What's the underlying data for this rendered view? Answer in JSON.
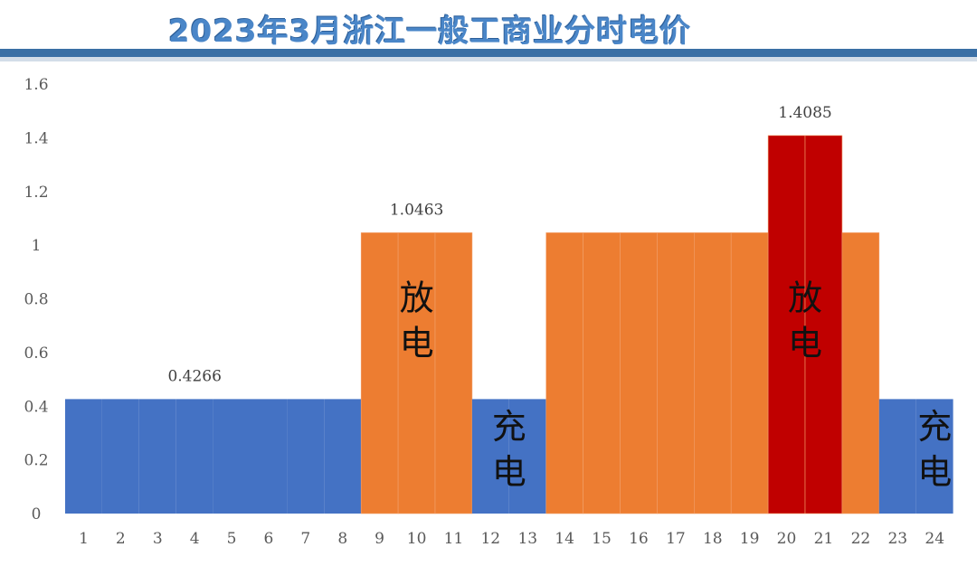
{
  "title": "2023年3月浙江一般工商业分时电价",
  "colors": {
    "valley": "#4472c4",
    "peak": "#ed7d31",
    "sharp": "#c00000",
    "title": "#4a86c8",
    "header_bar": "#3a6fa5"
  },
  "chart_data": {
    "type": "bar",
    "title": "2023年3月浙江一般工商业分时电价",
    "xlabel": "",
    "ylabel": "",
    "ylim": [
      0,
      1.6
    ],
    "yticks": [
      "0",
      "0.2",
      "0.4",
      "0.6",
      "0.8",
      "1",
      "1.2",
      "1.4",
      "1.6"
    ],
    "grid": false,
    "categories": [
      "1",
      "2",
      "3",
      "4",
      "5",
      "6",
      "7",
      "8",
      "9",
      "10",
      "11",
      "12",
      "13",
      "14",
      "15",
      "16",
      "17",
      "18",
      "19",
      "20",
      "21",
      "22",
      "23",
      "24"
    ],
    "values": [
      0.4266,
      0.4266,
      0.4266,
      0.4266,
      0.4266,
      0.4266,
      0.4266,
      0.4266,
      1.0463,
      1.0463,
      1.0463,
      0.4266,
      0.4266,
      1.0463,
      1.0463,
      1.0463,
      1.0463,
      1.0463,
      1.0463,
      1.4085,
      1.4085,
      1.0463,
      0.4266,
      0.4266
    ],
    "bar_colors": [
      "#4472c4",
      "#4472c4",
      "#4472c4",
      "#4472c4",
      "#4472c4",
      "#4472c4",
      "#4472c4",
      "#4472c4",
      "#ed7d31",
      "#ed7d31",
      "#ed7d31",
      "#4472c4",
      "#4472c4",
      "#ed7d31",
      "#ed7d31",
      "#ed7d31",
      "#ed7d31",
      "#ed7d31",
      "#ed7d31",
      "#c00000",
      "#c00000",
      "#ed7d31",
      "#4472c4",
      "#4472c4"
    ],
    "data_labels": [
      {
        "text": "0.4266",
        "hour": 4,
        "value": 0.4266
      },
      {
        "text": "1.0463",
        "hour": 10,
        "value": 1.0463
      },
      {
        "text": "1.4085",
        "hour": 20.5,
        "value": 1.4085
      }
    ],
    "annotations": [
      {
        "text": "放电",
        "hour": 10,
        "value": 0.72
      },
      {
        "text": "充电",
        "hour": 12.5,
        "value": 0.24
      },
      {
        "text": "放电",
        "hour": 20.5,
        "value": 0.72
      },
      {
        "text": "充电",
        "hour": 24,
        "value": 0.24
      }
    ]
  }
}
